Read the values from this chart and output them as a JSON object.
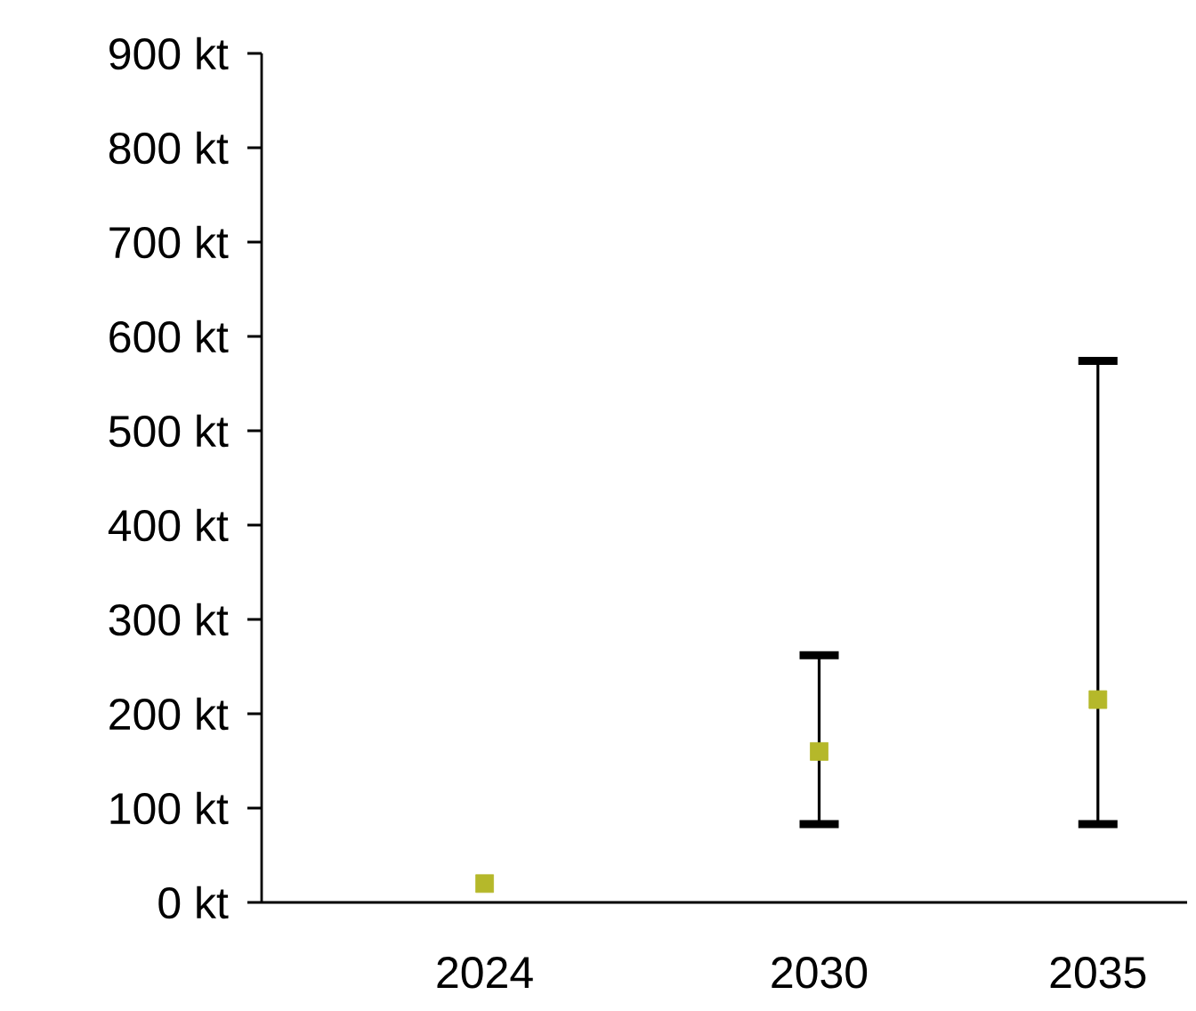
{
  "chart_data": {
    "type": "scatter",
    "x": [
      2024,
      2030,
      2035
    ],
    "values": [
      20,
      160,
      215
    ],
    "errors": [
      null,
      [
        83,
        262
      ],
      [
        83,
        574
      ]
    ],
    "color": "#b5b82a",
    "xlim": [
      2020,
      2036.6
    ],
    "xticks": [
      2024,
      2030,
      2035
    ],
    "ylim": [
      0,
      900
    ],
    "yticks": [
      {
        "value": 0,
        "label": "0 kt"
      },
      {
        "value": 100,
        "label": "100 kt"
      },
      {
        "value": 200,
        "label": "200 kt"
      },
      {
        "value": 300,
        "label": "300 kt"
      },
      {
        "value": 400,
        "label": "400 kt"
      },
      {
        "value": 500,
        "label": "500 kt"
      },
      {
        "value": 600,
        "label": "600 kt"
      },
      {
        "value": 700,
        "label": "700 kt"
      },
      {
        "value": 800,
        "label": "800 kt"
      },
      {
        "value": 900,
        "label": "900 kt"
      }
    ],
    "marker": "square",
    "grid": false
  }
}
